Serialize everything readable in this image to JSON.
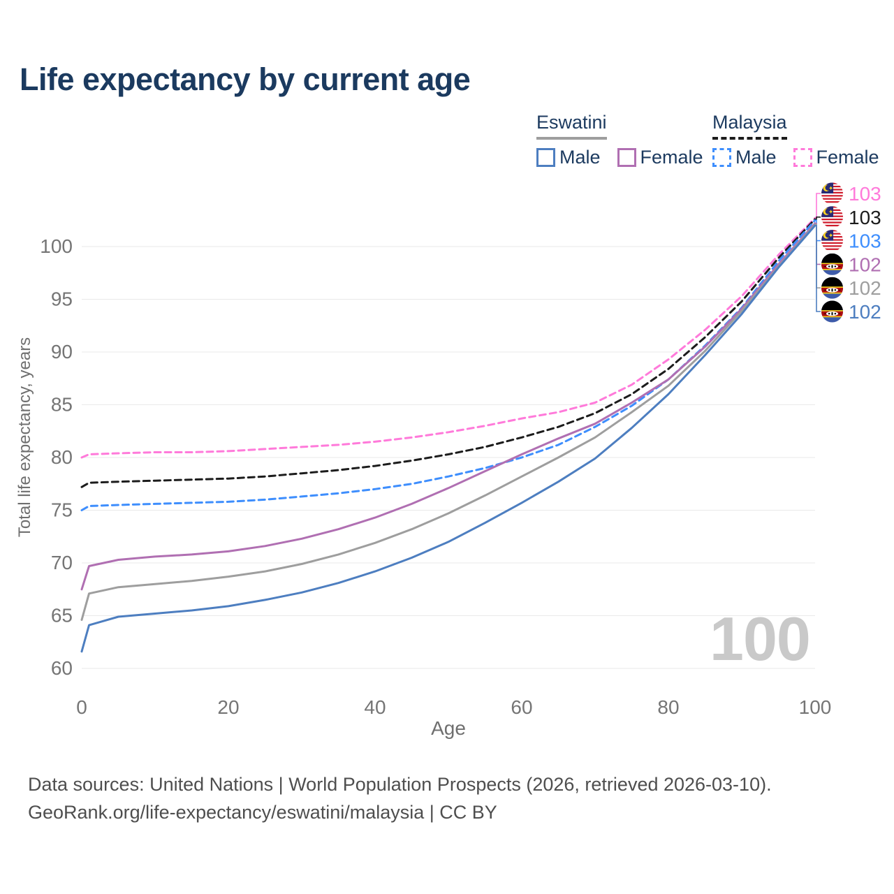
{
  "title": "Life expectancy by current age",
  "watermark": "100",
  "footer": {
    "line1": "Data sources: United Nations | World Population Prospects (2026, retrieved 2026-03-10).",
    "line2": "GeoRank.org/life-expectancy/eswatini/malaysia | CC BY"
  },
  "legend": {
    "groups": [
      {
        "label": "Eswatini",
        "line_style": "solid",
        "line_color": "#9e9e9e",
        "items": [
          {
            "label": "Male",
            "swatch_color": "#4d7ec0",
            "swatch_style": "solid"
          },
          {
            "label": "Female",
            "swatch_color": "#b06fb2",
            "swatch_style": "solid"
          }
        ]
      },
      {
        "label": "Malaysia",
        "line_style": "dashed",
        "line_color": "#1c1c1c",
        "items": [
          {
            "label": "Male",
            "swatch_color": "#3e8efd",
            "swatch_style": "dashed"
          },
          {
            "label": "Female",
            "swatch_color": "#ff7ada",
            "swatch_style": "dashed"
          }
        ]
      }
    ]
  },
  "chart_data": {
    "type": "line",
    "title": "Life expectancy by current age",
    "xlabel": "Age",
    "ylabel": "Total life expectancy, years",
    "xlim": [
      0,
      100
    ],
    "ylim": [
      58.5,
      103.5
    ],
    "xticks": [
      0,
      20,
      40,
      60,
      80,
      100
    ],
    "yticks": [
      60,
      65,
      70,
      75,
      80,
      85,
      90,
      95,
      100
    ],
    "grid": "horizontal-only",
    "legend_position": "top-right",
    "x": [
      0,
      1,
      5,
      10,
      15,
      20,
      25,
      30,
      35,
      40,
      45,
      50,
      55,
      60,
      65,
      70,
      75,
      80,
      85,
      90,
      95,
      100
    ],
    "series": [
      {
        "name": "Malaysia Female",
        "country": "Malaysia",
        "sex": "Female",
        "color": "#ff7ada",
        "dashed": true,
        "flag": "malaysia",
        "end_label": "103",
        "values": [
          80.0,
          80.3,
          80.4,
          80.5,
          80.5,
          80.6,
          80.8,
          81.0,
          81.2,
          81.5,
          81.9,
          82.4,
          83.0,
          83.7,
          84.3,
          85.2,
          86.9,
          89.3,
          92.1,
          95.3,
          99.2,
          102.7
        ]
      },
      {
        "name": "Malaysia Both sexes",
        "country": "Malaysia",
        "sex": "Both",
        "color": "#1c1c1c",
        "dashed": true,
        "flag": "malaysia",
        "end_label": "103",
        "values": [
          77.2,
          77.6,
          77.7,
          77.8,
          77.9,
          78.0,
          78.2,
          78.5,
          78.8,
          79.2,
          79.7,
          80.3,
          81.0,
          81.9,
          82.9,
          84.2,
          86.0,
          88.4,
          91.4,
          94.8,
          98.9,
          102.6
        ]
      },
      {
        "name": "Malaysia Male",
        "country": "Malaysia",
        "sex": "Male",
        "color": "#3e8efd",
        "dashed": true,
        "flag": "malaysia",
        "end_label": "103",
        "values": [
          75.0,
          75.4,
          75.5,
          75.6,
          75.7,
          75.8,
          76.0,
          76.3,
          76.6,
          77.0,
          77.5,
          78.2,
          79.0,
          80.0,
          81.2,
          82.9,
          84.9,
          87.4,
          90.6,
          94.2,
          98.6,
          102.5
        ]
      },
      {
        "name": "Eswatini Female",
        "country": "Eswatini",
        "sex": "Female",
        "color": "#b06fb2",
        "dashed": false,
        "flag": "eswatini",
        "end_label": "102",
        "values": [
          67.5,
          69.7,
          70.3,
          70.6,
          70.8,
          71.1,
          71.6,
          72.3,
          73.2,
          74.3,
          75.6,
          77.1,
          78.7,
          80.3,
          81.8,
          83.2,
          85.2,
          87.4,
          90.5,
          94.1,
          98.3,
          102.2
        ]
      },
      {
        "name": "Eswatini Both sexes",
        "country": "Eswatini",
        "sex": "Both",
        "color": "#9e9e9e",
        "dashed": false,
        "flag": "eswatini",
        "end_label": "102",
        "values": [
          64.6,
          67.1,
          67.7,
          68.0,
          68.3,
          68.7,
          69.2,
          69.9,
          70.8,
          71.9,
          73.2,
          74.7,
          76.4,
          78.2,
          80.0,
          81.9,
          84.3,
          86.8,
          90.1,
          93.9,
          98.1,
          102.1
        ]
      },
      {
        "name": "Eswatini Male",
        "country": "Eswatini",
        "sex": "Male",
        "color": "#4d7ec0",
        "dashed": false,
        "flag": "eswatini",
        "end_label": "102",
        "values": [
          61.6,
          64.1,
          64.9,
          65.2,
          65.5,
          65.9,
          66.5,
          67.2,
          68.1,
          69.2,
          70.5,
          72.0,
          73.8,
          75.7,
          77.7,
          79.9,
          82.8,
          86.0,
          89.7,
          93.6,
          98.0,
          102.0
        ]
      }
    ]
  }
}
